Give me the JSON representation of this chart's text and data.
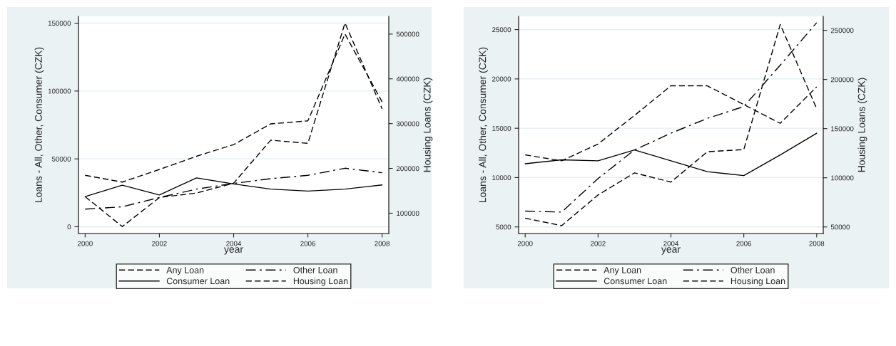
{
  "chart_data": [
    {
      "type": "line",
      "xlabel": "year",
      "ylabel": "Loans - All, Other, Consumer (CZK)",
      "y2label": "Housing Loans (CZK)",
      "x": [
        2000,
        2001,
        2002,
        2003,
        2004,
        2005,
        2006,
        2007,
        2008
      ],
      "xlim": [
        1999.82,
        2008.18
      ],
      "xticks": [
        2000,
        2002,
        2004,
        2006,
        2008
      ],
      "ylim": [
        -5000,
        155000
      ],
      "yticks": [
        0,
        50000,
        100000,
        150000
      ],
      "y2lim": [
        54600,
        539500
      ],
      "y2ticks": [
        100000,
        200000,
        300000,
        400000,
        500000
      ],
      "grid": "y",
      "legend": "bottom",
      "marker": "none",
      "series": [
        {
          "name": "Any Loan",
          "color": "#000000",
          "line_style": "dashed",
          "values": [
            37900,
            32900,
            42200,
            51900,
            60500,
            75800,
            78000,
            142000,
            92000
          ]
        },
        {
          "name": "Other Loan",
          "color": "#000000",
          "line_style": "dashdot",
          "values": [
            13000,
            14700,
            21500,
            27700,
            31900,
            35400,
            37900,
            43100,
            39800
          ]
        },
        {
          "name": "Consumer Loan",
          "color": "#000000",
          "line_style": "solid",
          "values": [
            22200,
            30600,
            23400,
            36000,
            31500,
            27700,
            26300,
            27700,
            30800
          ]
        },
        {
          "name": "Housing Loan",
          "color": "#000000",
          "line_style": "dashed",
          "axis": "y2",
          "values": [
            137000,
            70000,
            135000,
            145000,
            167000,
            263000,
            256000,
            524700,
            333000
          ]
        }
      ]
    },
    {
      "type": "line",
      "xlabel": "year",
      "ylabel": "Loans - All, Other, Consumer (CZK)",
      "y2label": "Housing Loans (CZK)",
      "x": [
        2000,
        2001,
        2002,
        2003,
        2004,
        2005,
        2006,
        2007,
        2008
      ],
      "xlim": [
        1999.82,
        2008.18
      ],
      "xticks": [
        2000,
        2002,
        2004,
        2006,
        2008
      ],
      "ylim": [
        4330,
        26340
      ],
      "yticks": [
        5000,
        10000,
        15000,
        20000,
        25000
      ],
      "y2lim": [
        43300,
        264200
      ],
      "y2ticks": [
        50000,
        100000,
        150000,
        200000,
        250000
      ],
      "grid": "y",
      "legend": "bottom",
      "marker": "none",
      "series": [
        {
          "name": "Any Loan",
          "color": "#000000",
          "line_style": "dashed",
          "values": [
            12300,
            11700,
            13400,
            16300,
            19300,
            19300,
            17400,
            15500,
            19200
          ]
        },
        {
          "name": "Other Loan",
          "color": "#000000",
          "line_style": "dashdot",
          "values": [
            6600,
            6500,
            9900,
            12800,
            14500,
            16000,
            17200,
            21400,
            25700
          ]
        },
        {
          "name": "Consumer Loan",
          "color": "#000000",
          "line_style": "solid",
          "values": [
            11400,
            11800,
            11700,
            12800,
            11700,
            10600,
            10200,
            12300,
            14500
          ]
        },
        {
          "name": "Housing Loan",
          "color": "#000000",
          "line_style": "dashed",
          "axis": "y2",
          "values": [
            58900,
            51300,
            82500,
            105000,
            95600,
            126500,
            128700,
            256000,
            170300
          ]
        }
      ]
    }
  ]
}
